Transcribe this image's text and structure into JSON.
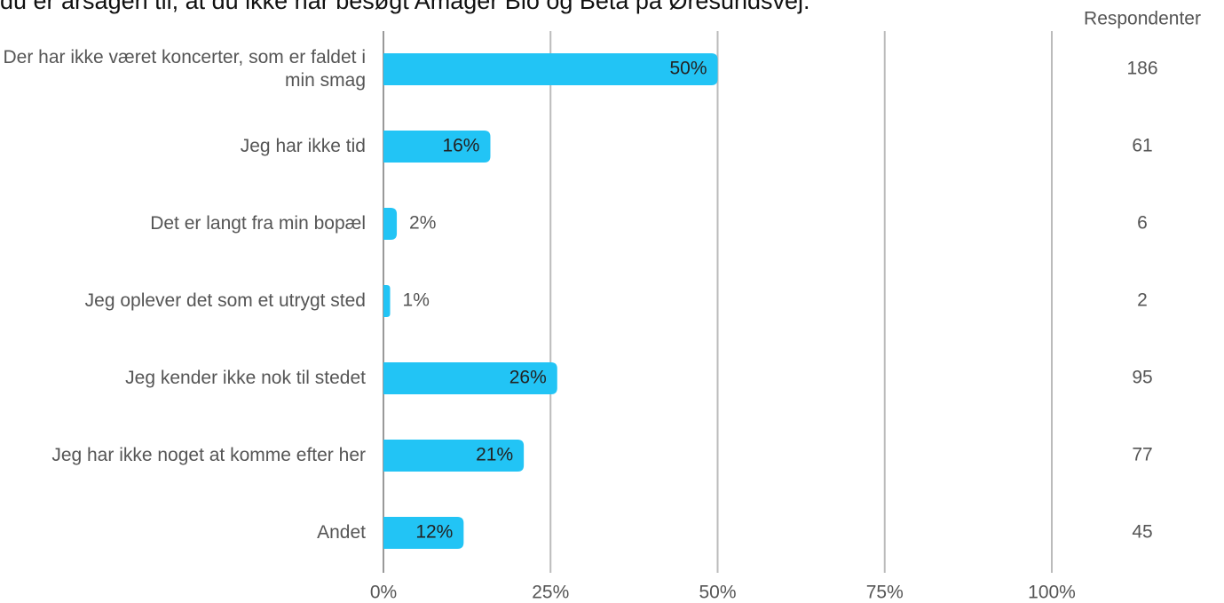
{
  "chart_data": {
    "type": "bar",
    "orientation": "horizontal",
    "title": "du er årsagen til, at du ikke har besøgt Amager Bio og Beta på Øresundsvej.",
    "categories": [
      "Der har ikke været koncerter, som er faldet i min smag",
      "Jeg har ikke tid",
      "Det er langt fra min bopæl",
      "Jeg oplever det som et utrygt sted",
      "Jeg kender ikke nok til stedet",
      "Jeg har ikke noget at komme efter her",
      "Andet"
    ],
    "values": [
      50,
      16,
      2,
      1,
      26,
      21,
      12
    ],
    "value_labels": [
      "50%",
      "16%",
      "2%",
      "1%",
      "26%",
      "21%",
      "12%"
    ],
    "color": "#22c4f5",
    "respondents_label": "Respondenter",
    "respondents": [
      186,
      61,
      6,
      2,
      95,
      77,
      45
    ],
    "xlim": [
      0,
      100
    ],
    "xticks": [
      {
        "value": 0,
        "label": "0%"
      },
      {
        "value": 25,
        "label": "25%"
      },
      {
        "value": 50,
        "label": "50%"
      },
      {
        "value": 75,
        "label": "75%"
      },
      {
        "value": 100,
        "label": "100%"
      }
    ],
    "grid": true
  }
}
